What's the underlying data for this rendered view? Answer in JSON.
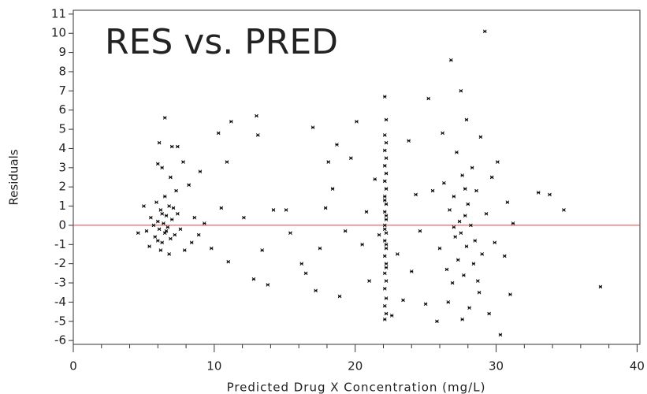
{
  "chart_data": {
    "type": "scatter",
    "title": "RES vs. PRED",
    "xlabel": "Predicted Drug X Concentration (mg/L)",
    "ylabel": "Residuals",
    "xlim": [
      0,
      40.2
    ],
    "ylim": [
      -6.2,
      11.2
    ],
    "xticks": [
      0,
      10,
      20,
      30,
      40
    ],
    "xminorticks": [
      2,
      4,
      6,
      8,
      12,
      14,
      16,
      18,
      22,
      24,
      26,
      28,
      32,
      34,
      36,
      38
    ],
    "yticks": [
      -6,
      -5,
      -4,
      -3,
      -2,
      -1,
      0,
      1,
      2,
      3,
      4,
      5,
      6,
      7,
      8,
      9,
      10,
      11
    ],
    "color": "#000000",
    "reference_line": {
      "value": 0,
      "color": "#e04040"
    },
    "x": [
      5.2,
      5.5,
      5.8,
      6.0,
      6.1,
      6.2,
      6.3,
      6.4,
      6.5,
      6.6,
      6.7,
      6.8,
      6.9,
      7.0,
      7.2,
      7.4,
      7.6,
      5.9,
      6.2,
      6.5,
      6.0,
      6.3,
      5.7,
      6.6,
      7.1,
      6.9,
      6.3,
      6.1,
      6.5,
      7.0,
      7.4,
      6.0,
      7.8,
      8.2,
      8.6,
      8.9,
      9.3,
      9.8,
      5.0,
      4.6,
      5.4,
      7.9,
      6.8,
      8.4,
      9.0,
      7.3,
      10.3,
      10.5,
      10.9,
      11.2,
      11.0,
      12.1,
      12.8,
      13.0,
      13.1,
      13.4,
      13.8,
      14.2,
      15.1,
      15.4,
      16.2,
      16.5,
      17.0,
      17.2,
      17.5,
      17.9,
      18.1,
      18.4,
      18.7,
      18.9,
      19.3,
      19.7,
      20.1,
      20.5,
      20.8,
      21.0,
      21.4,
      21.7,
      22.1,
      22.2,
      22.1,
      22.2,
      22.1,
      22.2,
      22.1,
      22.2,
      22.1,
      22.2,
      22.1,
      22.2,
      22.1,
      22.2,
      22.1,
      22.2,
      22.1,
      22.2,
      22.1,
      22.2,
      22.1,
      22.2,
      22.1,
      22.2,
      22.1,
      22.2,
      22.1,
      22.2,
      22.1,
      22.2,
      22.1,
      22.2,
      22.6,
      23.0,
      23.4,
      23.8,
      24.0,
      24.3,
      24.6,
      25.0,
      25.2,
      25.5,
      25.8,
      26.0,
      26.3,
      26.5,
      26.7,
      26.8,
      26.9,
      27.0,
      27.1,
      27.2,
      27.3,
      27.4,
      27.5,
      27.5,
      27.6,
      27.7,
      27.8,
      27.9,
      27.9,
      28.0,
      28.1,
      28.2,
      28.3,
      28.4,
      28.5,
      28.6,
      28.8,
      28.9,
      29.0,
      29.2,
      29.3,
      29.5,
      29.7,
      29.9,
      30.1,
      30.3,
      30.6,
      30.8,
      31.0,
      31.2,
      26.2,
      26.6,
      27.6,
      28.7,
      27.0,
      27.8,
      33.0,
      33.8,
      34.8,
      37.4
    ],
    "y": [
      -0.3,
      0.4,
      -0.6,
      0.2,
      -0.2,
      0.8,
      -0.9,
      0.1,
      -0.4,
      0.5,
      -0.1,
      1.0,
      -0.7,
      0.3,
      -0.5,
      0.6,
      -0.2,
      1.2,
      -1.3,
      1.5,
      -0.8,
      0.6,
      0.0,
      -0.3,
      0.9,
      2.5,
      3.0,
      4.3,
      5.6,
      4.1,
      4.1,
      3.2,
      3.3,
      2.1,
      0.4,
      -0.5,
      0.1,
      -1.2,
      1.0,
      -0.4,
      -1.1,
      -1.3,
      -1.5,
      -0.9,
      2.8,
      1.8,
      4.8,
      0.9,
      3.3,
      5.4,
      -1.9,
      0.4,
      -2.8,
      5.7,
      4.7,
      -1.3,
      -3.1,
      0.8,
      0.8,
      -0.4,
      -2.0,
      -2.5,
      5.1,
      -3.4,
      -1.2,
      0.9,
      3.3,
      1.9,
      4.2,
      -3.7,
      -0.3,
      3.5,
      5.4,
      -1.0,
      0.7,
      -2.9,
      2.4,
      -0.5,
      -4.9,
      -4.6,
      -4.2,
      -3.8,
      -3.3,
      -2.9,
      -2.5,
      -2.0,
      -1.6,
      -1.2,
      -0.8,
      -0.4,
      0.0,
      0.3,
      0.7,
      1.1,
      1.5,
      1.9,
      2.3,
      2.7,
      3.1,
      3.5,
      3.9,
      4.3,
      4.7,
      5.5,
      6.7,
      -1.0,
      -0.2,
      0.5,
      1.3,
      -2.2,
      -4.7,
      -1.5,
      -3.9,
      4.4,
      -2.4,
      1.6,
      -0.3,
      -4.1,
      6.6,
      1.8,
      -5.0,
      -1.2,
      2.2,
      -2.3,
      0.8,
      8.6,
      -3.0,
      1.5,
      -0.6,
      3.8,
      -1.8,
      0.2,
      7.0,
      -0.4,
      2.6,
      -2.6,
      0.5,
      5.5,
      -1.1,
      1.1,
      -4.3,
      0.0,
      3.0,
      -2.0,
      -0.8,
      1.8,
      -3.5,
      4.6,
      -1.5,
      10.1,
      0.6,
      -4.6,
      2.5,
      -0.9,
      3.3,
      -5.7,
      -1.6,
      1.2,
      -3.6,
      0.1,
      4.8,
      -4.0,
      -4.9,
      -2.9,
      -0.1,
      1.9,
      1.7,
      1.6,
      0.8,
      -3.2
    ]
  }
}
